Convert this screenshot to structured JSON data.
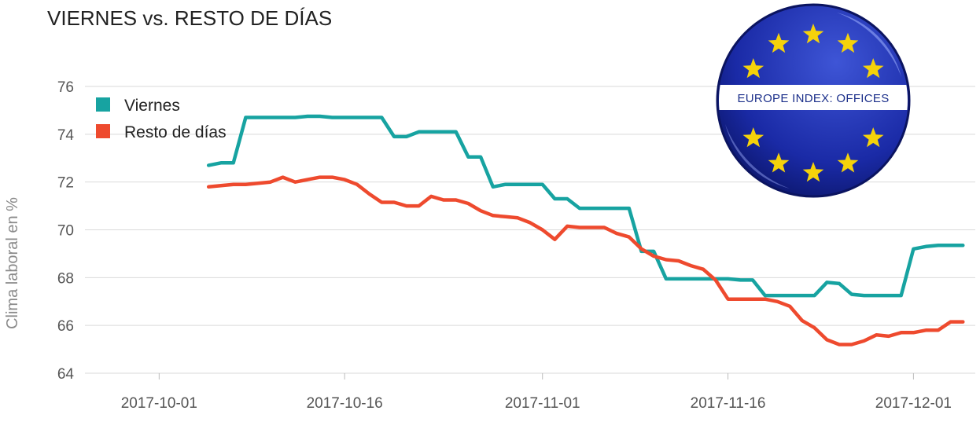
{
  "title": "VIERNES vs. RESTO DE DÍAS",
  "badge": {
    "text": "EUROPE INDEX: OFFICES",
    "flag_color": "#1a2aa6",
    "star_color": "#f5d20a"
  },
  "chart_data": {
    "type": "line",
    "title": "VIERNES vs. RESTO DE DÍAS",
    "xlabel": "",
    "ylabel": "Clima laboral en %",
    "ylim": [
      64,
      76
    ],
    "yticks": [
      "64",
      "66",
      "68",
      "70",
      "72",
      "74",
      "76"
    ],
    "xlim": [
      "2017-09-25",
      "2017-12-06"
    ],
    "xticks": [
      "2017-10-01",
      "2017-10-16",
      "2017-11-01",
      "2017-11-16",
      "2017-12-01"
    ],
    "grid": "horizontal",
    "legend_position": "top-left",
    "series": [
      {
        "name": "Viernes",
        "color": "#17a3a1",
        "points": [
          [
            "2017-10-05",
            72.7
          ],
          [
            "2017-10-06",
            72.8
          ],
          [
            "2017-10-07",
            72.8
          ],
          [
            "2017-10-08",
            74.7
          ],
          [
            "2017-10-09",
            74.7
          ],
          [
            "2017-10-10",
            74.7
          ],
          [
            "2017-10-11",
            74.7
          ],
          [
            "2017-10-12",
            74.7
          ],
          [
            "2017-10-13",
            74.75
          ],
          [
            "2017-10-14",
            74.75
          ],
          [
            "2017-10-15",
            74.7
          ],
          [
            "2017-10-16",
            74.7
          ],
          [
            "2017-10-17",
            74.7
          ],
          [
            "2017-10-18",
            74.7
          ],
          [
            "2017-10-19",
            74.7
          ],
          [
            "2017-10-20",
            73.9
          ],
          [
            "2017-10-21",
            73.9
          ],
          [
            "2017-10-22",
            74.1
          ],
          [
            "2017-10-23",
            74.1
          ],
          [
            "2017-10-24",
            74.1
          ],
          [
            "2017-10-25",
            74.1
          ],
          [
            "2017-10-26",
            73.05
          ],
          [
            "2017-10-27",
            73.05
          ],
          [
            "2017-10-28",
            71.8
          ],
          [
            "2017-10-29",
            71.9
          ],
          [
            "2017-10-30",
            71.9
          ],
          [
            "2017-10-31",
            71.9
          ],
          [
            "2017-11-01",
            71.9
          ],
          [
            "2017-11-02",
            71.3
          ],
          [
            "2017-11-03",
            71.3
          ],
          [
            "2017-11-04",
            70.9
          ],
          [
            "2017-11-05",
            70.9
          ],
          [
            "2017-11-06",
            70.9
          ],
          [
            "2017-11-07",
            70.9
          ],
          [
            "2017-11-08",
            70.9
          ],
          [
            "2017-11-09",
            69.1
          ],
          [
            "2017-11-10",
            69.1
          ],
          [
            "2017-11-11",
            67.95
          ],
          [
            "2017-11-12",
            67.95
          ],
          [
            "2017-11-13",
            67.95
          ],
          [
            "2017-11-14",
            67.95
          ],
          [
            "2017-11-15",
            67.95
          ],
          [
            "2017-11-16",
            67.95
          ],
          [
            "2017-11-17",
            67.9
          ],
          [
            "2017-11-18",
            67.9
          ],
          [
            "2017-11-19",
            67.25
          ],
          [
            "2017-11-20",
            67.25
          ],
          [
            "2017-11-21",
            67.25
          ],
          [
            "2017-11-22",
            67.25
          ],
          [
            "2017-11-23",
            67.25
          ],
          [
            "2017-11-24",
            67.8
          ],
          [
            "2017-11-25",
            67.75
          ],
          [
            "2017-11-26",
            67.3
          ],
          [
            "2017-11-27",
            67.25
          ],
          [
            "2017-11-28",
            67.25
          ],
          [
            "2017-11-29",
            67.25
          ],
          [
            "2017-11-30",
            67.25
          ],
          [
            "2017-12-01",
            69.2
          ],
          [
            "2017-12-02",
            69.3
          ],
          [
            "2017-12-03",
            69.35
          ],
          [
            "2017-12-04",
            69.35
          ],
          [
            "2017-12-05",
            69.35
          ]
        ]
      },
      {
        "name": "Resto de días",
        "color": "#ee4a2e",
        "points": [
          [
            "2017-10-05",
            71.8
          ],
          [
            "2017-10-06",
            71.85
          ],
          [
            "2017-10-07",
            71.9
          ],
          [
            "2017-10-08",
            71.9
          ],
          [
            "2017-10-09",
            71.95
          ],
          [
            "2017-10-10",
            72.0
          ],
          [
            "2017-10-11",
            72.2
          ],
          [
            "2017-10-12",
            72.0
          ],
          [
            "2017-10-13",
            72.1
          ],
          [
            "2017-10-14",
            72.2
          ],
          [
            "2017-10-15",
            72.2
          ],
          [
            "2017-10-16",
            72.1
          ],
          [
            "2017-10-17",
            71.9
          ],
          [
            "2017-10-18",
            71.5
          ],
          [
            "2017-10-19",
            71.15
          ],
          [
            "2017-10-20",
            71.15
          ],
          [
            "2017-10-21",
            71.0
          ],
          [
            "2017-10-22",
            71.0
          ],
          [
            "2017-10-23",
            71.4
          ],
          [
            "2017-10-24",
            71.25
          ],
          [
            "2017-10-25",
            71.25
          ],
          [
            "2017-10-26",
            71.1
          ],
          [
            "2017-10-27",
            70.8
          ],
          [
            "2017-10-28",
            70.6
          ],
          [
            "2017-10-29",
            70.55
          ],
          [
            "2017-10-30",
            70.5
          ],
          [
            "2017-10-31",
            70.3
          ],
          [
            "2017-11-01",
            70.0
          ],
          [
            "2017-11-02",
            69.6
          ],
          [
            "2017-11-03",
            70.15
          ],
          [
            "2017-11-04",
            70.1
          ],
          [
            "2017-11-05",
            70.1
          ],
          [
            "2017-11-06",
            70.1
          ],
          [
            "2017-11-07",
            69.85
          ],
          [
            "2017-11-08",
            69.7
          ],
          [
            "2017-11-09",
            69.2
          ],
          [
            "2017-11-10",
            68.9
          ],
          [
            "2017-11-11",
            68.75
          ],
          [
            "2017-11-12",
            68.7
          ],
          [
            "2017-11-13",
            68.5
          ],
          [
            "2017-11-14",
            68.35
          ],
          [
            "2017-11-15",
            67.9
          ],
          [
            "2017-11-16",
            67.1
          ],
          [
            "2017-11-17",
            67.1
          ],
          [
            "2017-11-18",
            67.1
          ],
          [
            "2017-11-19",
            67.1
          ],
          [
            "2017-11-20",
            67.0
          ],
          [
            "2017-11-21",
            66.8
          ],
          [
            "2017-11-22",
            66.2
          ],
          [
            "2017-11-23",
            65.9
          ],
          [
            "2017-11-24",
            65.4
          ],
          [
            "2017-11-25",
            65.2
          ],
          [
            "2017-11-26",
            65.2
          ],
          [
            "2017-11-27",
            65.35
          ],
          [
            "2017-11-28",
            65.6
          ],
          [
            "2017-11-29",
            65.55
          ],
          [
            "2017-11-30",
            65.7
          ],
          [
            "2017-12-01",
            65.7
          ],
          [
            "2017-12-02",
            65.8
          ],
          [
            "2017-12-03",
            65.8
          ],
          [
            "2017-12-04",
            66.15
          ],
          [
            "2017-12-05",
            66.15
          ]
        ]
      }
    ]
  }
}
